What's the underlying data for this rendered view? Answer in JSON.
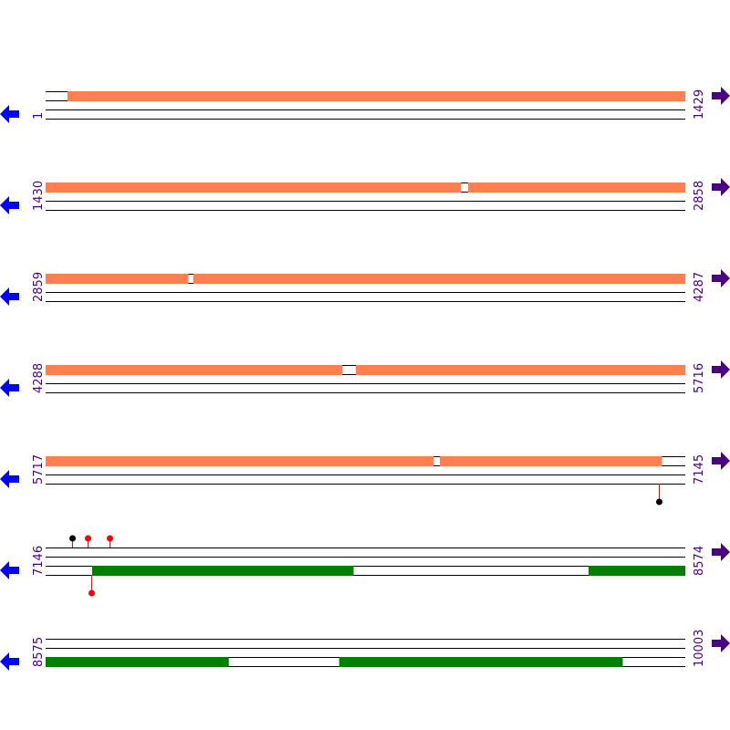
{
  "colors": {
    "orf_forward": "#ff7f50",
    "orf_reverse": "#008000",
    "position_label": "#4b0082",
    "forward_arrow": "#4b0082",
    "reverse_arrow": "#0000ff",
    "site_marker_red": "#ff0000",
    "site_marker_black": "#000000",
    "strand_line": "#000000"
  },
  "icons": {
    "left": "arrow-left-icon",
    "right": "arrow-right-icon"
  },
  "rows": [
    {
      "start": "1",
      "end": "1429",
      "from": 1,
      "to": 1429,
      "forward": [
        [
          50,
          1429
        ]
      ],
      "reverse": [],
      "markers": []
    },
    {
      "start": "1430",
      "end": "2858",
      "from": 1430,
      "to": 2858,
      "forward": [
        [
          1430,
          2357
        ],
        [
          2374,
          2858
        ]
      ],
      "reverse": [],
      "markers": []
    },
    {
      "start": "2859",
      "end": "4287",
      "from": 2859,
      "to": 4287,
      "forward": [
        [
          2859,
          3177
        ],
        [
          3189,
          4287
        ]
      ],
      "reverse": [],
      "markers": []
    },
    {
      "start": "4288",
      "end": "5716",
      "from": 4288,
      "to": 5716,
      "forward": [
        [
          4288,
          4950
        ],
        [
          4981,
          5716
        ]
      ],
      "reverse": [],
      "markers": []
    },
    {
      "start": "5717",
      "end": "7145",
      "from": 5717,
      "to": 7145,
      "forward": [
        [
          5717,
          6583
        ],
        [
          6598,
          7093
        ]
      ],
      "reverse": [],
      "markers": [
        {
          "pos": 7087,
          "side": "below",
          "color": "black"
        }
      ]
    },
    {
      "start": "7146",
      "end": "8574",
      "from": 7146,
      "to": 8574,
      "forward": [],
      "reverse": [
        [
          7250,
          7833
        ],
        [
          8359,
          8574
        ]
      ],
      "markers": [
        {
          "pos": 7205,
          "side": "above",
          "color": "black"
        },
        {
          "pos": 7240,
          "side": "above",
          "color": "red"
        },
        {
          "pos": 7289,
          "side": "above",
          "color": "red"
        },
        {
          "pos": 7248,
          "side": "below",
          "color": "red"
        }
      ]
    },
    {
      "start": "8575",
      "end": "10003",
      "from": 8575,
      "to": 10003,
      "forward": [],
      "reverse": [
        [
          8575,
          8983
        ],
        [
          9231,
          9863
        ]
      ],
      "markers": []
    }
  ]
}
